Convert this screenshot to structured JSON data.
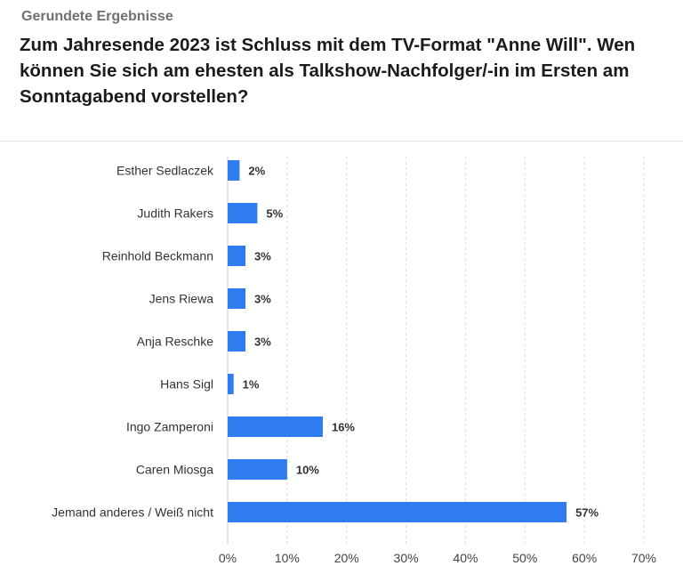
{
  "header": {
    "note": "Gerundete Ergebnisse",
    "title": "Zum Jahresende 2023 ist Schluss mit dem TV-Format \"Anne Will\". Wen können Sie sich am ehesten als Talkshow-Nachfolger/-in im Ersten am Sonntagabend vorstellen?"
  },
  "chart_data": {
    "type": "bar",
    "orientation": "horizontal",
    "categories": [
      "Esther Sedlaczek",
      "Judith Rakers",
      "Reinhold Beckmann",
      "Jens Riewa",
      "Anja Reschke",
      "Hans Sigl",
      "Ingo Zamperoni",
      "Caren Miosga",
      "Jemand anderes / Weiß nicht"
    ],
    "values": [
      2,
      5,
      3,
      3,
      3,
      1,
      16,
      10,
      57
    ],
    "value_labels": [
      "2%",
      "5%",
      "3%",
      "3%",
      "3%",
      "1%",
      "16%",
      "10%",
      "57%"
    ],
    "xlim": [
      0,
      70
    ],
    "ticks": [
      0,
      10,
      20,
      30,
      40,
      50,
      60,
      70
    ],
    "tick_labels": [
      "0%",
      "10%",
      "20%",
      "30%",
      "40%",
      "50%",
      "60%",
      "70%"
    ],
    "bar_color": "#2f7bf0",
    "grid": "vertical dashed",
    "legend": "none"
  }
}
